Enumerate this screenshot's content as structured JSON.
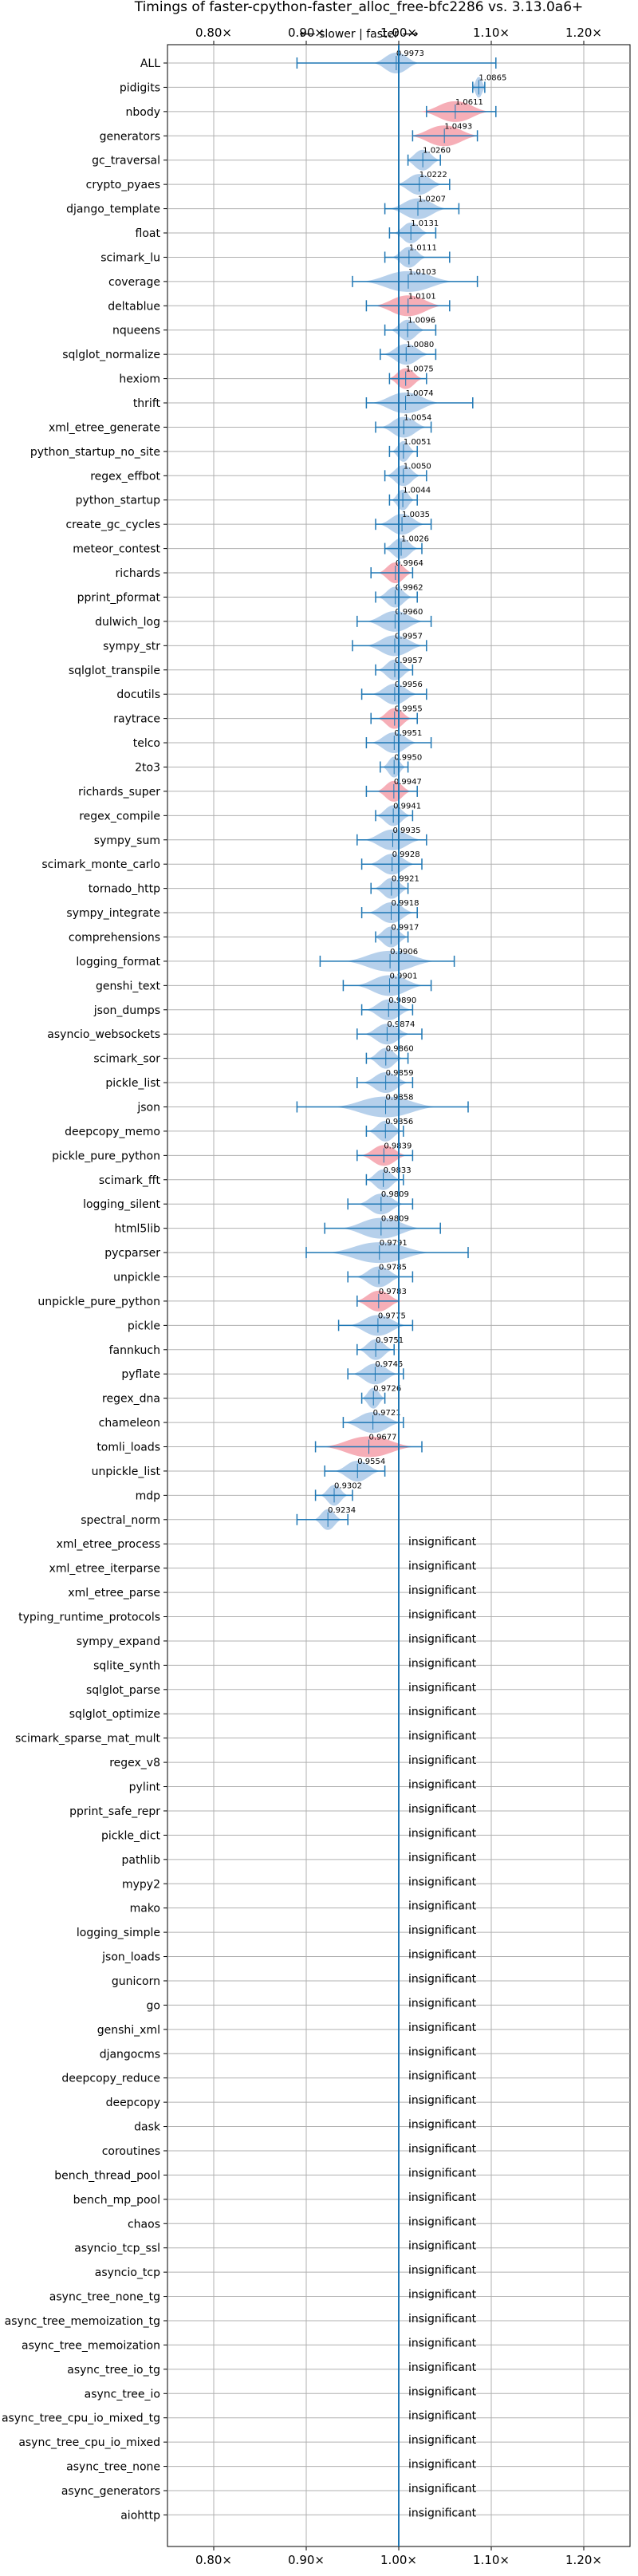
{
  "chart_data": {
    "type": "violin",
    "title": "Timings of faster-cpython-faster_alloc_free-bfc2286 vs. 3.13.0a6+",
    "direction_label": "⟵ slower | faster ⟶",
    "xlim": [
      0.75,
      1.25
    ],
    "x_ticks": [
      0.8,
      0.9,
      1.0,
      1.1,
      1.2
    ],
    "x_tick_labels": [
      "0.80×",
      "0.90×",
      "1.00×",
      "1.10×",
      "1.20×"
    ],
    "grid": true,
    "colors": {
      "faster": "#a9c8e8",
      "slower": "#f4a0aa",
      "error_bar": "#1f77b4",
      "baseline": "#1f77b4",
      "grid": "#b0b0b0"
    },
    "insignificant_label": "insignificant",
    "benchmarks": [
      {
        "name": "ALL",
        "value": 0.9973,
        "value_label": "0.9973",
        "low": 0.89,
        "high": 1.105,
        "spread": 0.02,
        "slower": false
      },
      {
        "name": "pidigits",
        "value": 1.0865,
        "value_label": "1.0865",
        "low": 1.08,
        "high": 1.093,
        "spread": 0.006,
        "slower": false
      },
      {
        "name": "nbody",
        "value": 1.0611,
        "value_label": "1.0611",
        "low": 1.03,
        "high": 1.105,
        "spread": 0.03,
        "slower": true
      },
      {
        "name": "generators",
        "value": 1.0493,
        "value_label": "1.0493",
        "low": 1.015,
        "high": 1.085,
        "spread": 0.03,
        "slower": true
      },
      {
        "name": "gc_traversal",
        "value": 1.026,
        "value_label": "1.0260",
        "low": 1.01,
        "high": 1.045,
        "spread": 0.015,
        "slower": false
      },
      {
        "name": "crypto_pyaes",
        "value": 1.0222,
        "value_label": "1.0222",
        "low": 1.0,
        "high": 1.055,
        "spread": 0.02,
        "slower": false
      },
      {
        "name": "django_template",
        "value": 1.0207,
        "value_label": "1.0207",
        "low": 0.985,
        "high": 1.065,
        "spread": 0.025,
        "slower": false
      },
      {
        "name": "float",
        "value": 1.0131,
        "value_label": "1.0131",
        "low": 0.99,
        "high": 1.04,
        "spread": 0.015,
        "slower": false
      },
      {
        "name": "scimark_lu",
        "value": 1.0111,
        "value_label": "1.0111",
        "low": 0.985,
        "high": 1.055,
        "spread": 0.015,
        "slower": false
      },
      {
        "name": "coverage",
        "value": 1.0103,
        "value_label": "1.0103",
        "low": 0.95,
        "high": 1.085,
        "spread": 0.04,
        "slower": false
      },
      {
        "name": "deltablue",
        "value": 1.0101,
        "value_label": "1.0101",
        "low": 0.965,
        "high": 1.055,
        "spread": 0.03,
        "slower": true
      },
      {
        "name": "nqueens",
        "value": 1.0096,
        "value_label": "1.0096",
        "low": 0.985,
        "high": 1.04,
        "spread": 0.015,
        "slower": false
      },
      {
        "name": "sqlglot_normalize",
        "value": 1.008,
        "value_label": "1.0080",
        "low": 0.98,
        "high": 1.04,
        "spread": 0.02,
        "slower": false
      },
      {
        "name": "hexiom",
        "value": 1.0075,
        "value_label": "1.0075",
        "low": 0.99,
        "high": 1.03,
        "spread": 0.015,
        "slower": true
      },
      {
        "name": "thrift",
        "value": 1.0074,
        "value_label": "1.0074",
        "low": 0.965,
        "high": 1.08,
        "spread": 0.03,
        "slower": false
      },
      {
        "name": "xml_etree_generate",
        "value": 1.0054,
        "value_label": "1.0054",
        "low": 0.975,
        "high": 1.035,
        "spread": 0.02,
        "slower": false
      },
      {
        "name": "python_startup_no_site",
        "value": 1.0051,
        "value_label": "1.0051",
        "low": 0.99,
        "high": 1.02,
        "spread": 0.01,
        "slower": false
      },
      {
        "name": "regex_effbot",
        "value": 1.005,
        "value_label": "1.0050",
        "low": 0.985,
        "high": 1.03,
        "spread": 0.015,
        "slower": false
      },
      {
        "name": "python_startup",
        "value": 1.0044,
        "value_label": "1.0044",
        "low": 0.99,
        "high": 1.02,
        "spread": 0.01,
        "slower": false
      },
      {
        "name": "create_gc_cycles",
        "value": 1.0035,
        "value_label": "1.0035",
        "low": 0.975,
        "high": 1.035,
        "spread": 0.02,
        "slower": false
      },
      {
        "name": "meteor_contest",
        "value": 1.0026,
        "value_label": "1.0026",
        "low": 0.985,
        "high": 1.025,
        "spread": 0.015,
        "slower": false
      },
      {
        "name": "richards",
        "value": 0.9964,
        "value_label": "0.9964",
        "low": 0.97,
        "high": 1.015,
        "spread": 0.015,
        "slower": true
      },
      {
        "name": "pprint_pformat",
        "value": 0.9962,
        "value_label": "0.9962",
        "low": 0.975,
        "high": 1.02,
        "spread": 0.015,
        "slower": false
      },
      {
        "name": "dulwich_log",
        "value": 0.996,
        "value_label": "0.9960",
        "low": 0.955,
        "high": 1.035,
        "spread": 0.025,
        "slower": false
      },
      {
        "name": "sympy_str",
        "value": 0.9957,
        "value_label": "0.9957",
        "low": 0.95,
        "high": 1.03,
        "spread": 0.025,
        "slower": false
      },
      {
        "name": "sqlglot_transpile",
        "value": 0.9957,
        "value_label": "0.9957",
        "low": 0.975,
        "high": 1.015,
        "spread": 0.015,
        "slower": false
      },
      {
        "name": "docutils",
        "value": 0.9956,
        "value_label": "0.9956",
        "low": 0.96,
        "high": 1.03,
        "spread": 0.02,
        "slower": false
      },
      {
        "name": "raytrace",
        "value": 0.9955,
        "value_label": "0.9955",
        "low": 0.97,
        "high": 1.02,
        "spread": 0.015,
        "slower": true
      },
      {
        "name": "telco",
        "value": 0.9951,
        "value_label": "0.9951",
        "low": 0.965,
        "high": 1.035,
        "spread": 0.02,
        "slower": false
      },
      {
        "name": "2to3",
        "value": 0.995,
        "value_label": "0.9950",
        "low": 0.98,
        "high": 1.01,
        "spread": 0.01,
        "slower": false
      },
      {
        "name": "richards_super",
        "value": 0.9947,
        "value_label": "0.9947",
        "low": 0.965,
        "high": 1.02,
        "spread": 0.015,
        "slower": true
      },
      {
        "name": "regex_compile",
        "value": 0.9941,
        "value_label": "0.9941",
        "low": 0.975,
        "high": 1.015,
        "spread": 0.015,
        "slower": false
      },
      {
        "name": "sympy_sum",
        "value": 0.9935,
        "value_label": "0.9935",
        "low": 0.955,
        "high": 1.03,
        "spread": 0.025,
        "slower": false
      },
      {
        "name": "scimark_monte_carlo",
        "value": 0.9928,
        "value_label": "0.9928",
        "low": 0.96,
        "high": 1.025,
        "spread": 0.02,
        "slower": false
      },
      {
        "name": "tornado_http",
        "value": 0.9921,
        "value_label": "0.9921",
        "low": 0.97,
        "high": 1.01,
        "spread": 0.015,
        "slower": false
      },
      {
        "name": "sympy_integrate",
        "value": 0.9918,
        "value_label": "0.9918",
        "low": 0.96,
        "high": 1.02,
        "spread": 0.02,
        "slower": false
      },
      {
        "name": "comprehensions",
        "value": 0.9917,
        "value_label": "0.9917",
        "low": 0.975,
        "high": 1.01,
        "spread": 0.015,
        "slower": false
      },
      {
        "name": "logging_format",
        "value": 0.9906,
        "value_label": "0.9906",
        "low": 0.915,
        "high": 1.06,
        "spread": 0.04,
        "slower": false
      },
      {
        "name": "genshi_text",
        "value": 0.9901,
        "value_label": "0.9901",
        "low": 0.94,
        "high": 1.035,
        "spread": 0.03,
        "slower": false
      },
      {
        "name": "json_dumps",
        "value": 0.989,
        "value_label": "0.9890",
        "low": 0.96,
        "high": 1.015,
        "spread": 0.02,
        "slower": false
      },
      {
        "name": "asyncio_websockets",
        "value": 0.9874,
        "value_label": "0.9874",
        "low": 0.955,
        "high": 1.025,
        "spread": 0.02,
        "slower": false
      },
      {
        "name": "scimark_sor",
        "value": 0.986,
        "value_label": "0.9860",
        "low": 0.965,
        "high": 1.01,
        "spread": 0.015,
        "slower": false
      },
      {
        "name": "pickle_list",
        "value": 0.9859,
        "value_label": "0.9859",
        "low": 0.955,
        "high": 1.015,
        "spread": 0.02,
        "slower": false
      },
      {
        "name": "json",
        "value": 0.9858,
        "value_label": "0.9858",
        "low": 0.89,
        "high": 1.075,
        "spread": 0.045,
        "slower": false
      },
      {
        "name": "deepcopy_memo",
        "value": 0.9856,
        "value_label": "0.9856",
        "low": 0.965,
        "high": 1.005,
        "spread": 0.015,
        "slower": false
      },
      {
        "name": "pickle_pure_python",
        "value": 0.9839,
        "value_label": "0.9839",
        "low": 0.955,
        "high": 1.015,
        "spread": 0.02,
        "slower": true
      },
      {
        "name": "scimark_fft",
        "value": 0.9833,
        "value_label": "0.9833",
        "low": 0.965,
        "high": 1.005,
        "spread": 0.015,
        "slower": false
      },
      {
        "name": "logging_silent",
        "value": 0.9809,
        "value_label": "0.9809",
        "low": 0.945,
        "high": 1.015,
        "spread": 0.02,
        "slower": false
      },
      {
        "name": "html5lib",
        "value": 0.9809,
        "value_label": "0.9809",
        "low": 0.92,
        "high": 1.045,
        "spread": 0.035,
        "slower": false
      },
      {
        "name": "pycparser",
        "value": 0.9791,
        "value_label": "0.9791",
        "low": 0.9,
        "high": 1.075,
        "spread": 0.045,
        "slower": false
      },
      {
        "name": "unpickle",
        "value": 0.9785,
        "value_label": "0.9785",
        "low": 0.945,
        "high": 1.015,
        "spread": 0.02,
        "slower": false
      },
      {
        "name": "unpickle_pure_python",
        "value": 0.9783,
        "value_label": "0.9783",
        "low": 0.955,
        "high": 1.0,
        "spread": 0.02,
        "slower": true
      },
      {
        "name": "pickle",
        "value": 0.9775,
        "value_label": "0.9775",
        "low": 0.935,
        "high": 1.015,
        "spread": 0.025,
        "slower": false
      },
      {
        "name": "fannkuch",
        "value": 0.9751,
        "value_label": "0.9751",
        "low": 0.955,
        "high": 0.995,
        "spread": 0.015,
        "slower": false
      },
      {
        "name": "pyflate",
        "value": 0.9745,
        "value_label": "0.9745",
        "low": 0.945,
        "high": 1.005,
        "spread": 0.02,
        "slower": false
      },
      {
        "name": "regex_dna",
        "value": 0.9726,
        "value_label": "0.9726",
        "low": 0.96,
        "high": 0.985,
        "spread": 0.01,
        "slower": false
      },
      {
        "name": "chameleon",
        "value": 0.9721,
        "value_label": "0.9721",
        "low": 0.94,
        "high": 1.005,
        "spread": 0.025,
        "slower": false
      },
      {
        "name": "tomli_loads",
        "value": 0.9677,
        "value_label": "0.9677",
        "low": 0.91,
        "high": 1.025,
        "spread": 0.04,
        "slower": true
      },
      {
        "name": "unpickle_list",
        "value": 0.9554,
        "value_label": "0.9554",
        "low": 0.92,
        "high": 0.985,
        "spread": 0.02,
        "slower": false
      },
      {
        "name": "mdp",
        "value": 0.9302,
        "value_label": "0.9302",
        "low": 0.91,
        "high": 0.95,
        "spread": 0.012,
        "slower": false
      },
      {
        "name": "spectral_norm",
        "value": 0.9234,
        "value_label": "0.9234",
        "low": 0.89,
        "high": 0.945,
        "spread": 0.012,
        "slower": false
      },
      {
        "name": "xml_etree_process",
        "insignificant": true
      },
      {
        "name": "xml_etree_iterparse",
        "insignificant": true
      },
      {
        "name": "xml_etree_parse",
        "insignificant": true
      },
      {
        "name": "typing_runtime_protocols",
        "insignificant": true
      },
      {
        "name": "sympy_expand",
        "insignificant": true
      },
      {
        "name": "sqlite_synth",
        "insignificant": true
      },
      {
        "name": "sqlglot_parse",
        "insignificant": true
      },
      {
        "name": "sqlglot_optimize",
        "insignificant": true
      },
      {
        "name": "scimark_sparse_mat_mult",
        "insignificant": true
      },
      {
        "name": "regex_v8",
        "insignificant": true
      },
      {
        "name": "pylint",
        "insignificant": true
      },
      {
        "name": "pprint_safe_repr",
        "insignificant": true
      },
      {
        "name": "pickle_dict",
        "insignificant": true
      },
      {
        "name": "pathlib",
        "insignificant": true
      },
      {
        "name": "mypy2",
        "insignificant": true
      },
      {
        "name": "mako",
        "insignificant": true
      },
      {
        "name": "logging_simple",
        "insignificant": true
      },
      {
        "name": "json_loads",
        "insignificant": true
      },
      {
        "name": "gunicorn",
        "insignificant": true
      },
      {
        "name": "go",
        "insignificant": true
      },
      {
        "name": "genshi_xml",
        "insignificant": true
      },
      {
        "name": "djangocms",
        "insignificant": true
      },
      {
        "name": "deepcopy_reduce",
        "insignificant": true
      },
      {
        "name": "deepcopy",
        "insignificant": true
      },
      {
        "name": "dask",
        "insignificant": true
      },
      {
        "name": "coroutines",
        "insignificant": true
      },
      {
        "name": "bench_thread_pool",
        "insignificant": true
      },
      {
        "name": "bench_mp_pool",
        "insignificant": true
      },
      {
        "name": "chaos",
        "insignificant": true
      },
      {
        "name": "asyncio_tcp_ssl",
        "insignificant": true
      },
      {
        "name": "asyncio_tcp",
        "insignificant": true
      },
      {
        "name": "async_tree_none_tg",
        "insignificant": true
      },
      {
        "name": "async_tree_memoization_tg",
        "insignificant": true
      },
      {
        "name": "async_tree_memoization",
        "insignificant": true
      },
      {
        "name": "async_tree_io_tg",
        "insignificant": true
      },
      {
        "name": "async_tree_io",
        "insignificant": true
      },
      {
        "name": "async_tree_cpu_io_mixed_tg",
        "insignificant": true
      },
      {
        "name": "async_tree_cpu_io_mixed",
        "insignificant": true
      },
      {
        "name": "async_tree_none",
        "insignificant": true
      },
      {
        "name": "async_generators",
        "insignificant": true
      },
      {
        "name": "aiohttp",
        "insignificant": true
      }
    ]
  }
}
